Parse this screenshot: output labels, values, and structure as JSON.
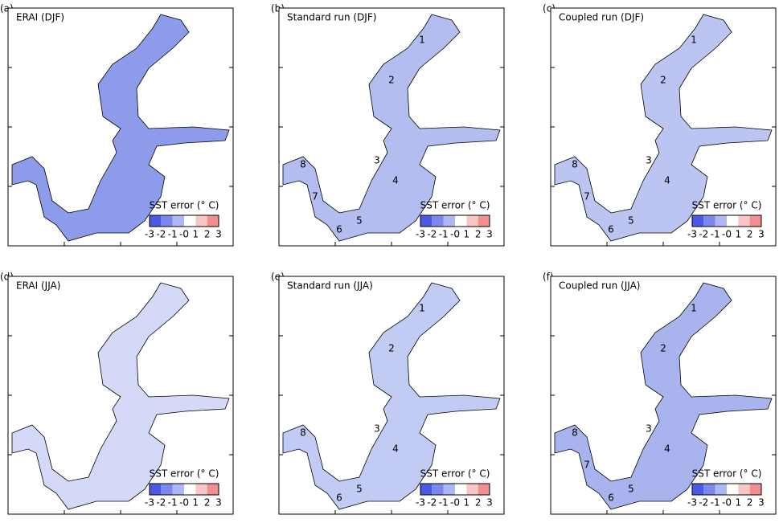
{
  "panels": [
    {
      "letter": "(a)",
      "title": "ERAI (DJF)",
      "map_color": "#8c9bea",
      "regions": []
    },
    {
      "letter": "(b)",
      "title": "Standard run (DJF)",
      "map_color": "#b3bdf0",
      "regions": [
        "1",
        "2",
        "3",
        "4",
        "5",
        "6",
        "7",
        "8"
      ]
    },
    {
      "letter": "(c)",
      "title": "Coupled run (DJF)",
      "map_color": "#bcc5f2",
      "regions": [
        "1",
        "2",
        "3",
        "4",
        "5",
        "6",
        "7",
        "8"
      ]
    },
    {
      "letter": "(d)",
      "title": "ERAI (JJA)",
      "map_color": "#d3d9f7",
      "regions": []
    },
    {
      "letter": "(e)",
      "title": "Standard run (JJA)",
      "map_color": "#c2cbf3",
      "regions": [
        "1",
        "2",
        "3",
        "4",
        "5",
        "6",
        "8"
      ]
    },
    {
      "letter": "(f)",
      "title": "Coupled run (JJA)",
      "map_color": "#a9b4ee",
      "regions": [
        "1",
        "2",
        "3",
        "4",
        "5",
        "6",
        "7",
        "8"
      ]
    }
  ],
  "colorbar": {
    "label": "SST error (° C)",
    "ticks": [
      "-3",
      "-2",
      "-1",
      "-0",
      "1",
      "2",
      "3"
    ],
    "colors": [
      "#4a5ae6",
      "#7b87ec",
      "#aeb6f3",
      "#ffffff",
      "#f7c7c7",
      "#f08f8f"
    ]
  }
}
